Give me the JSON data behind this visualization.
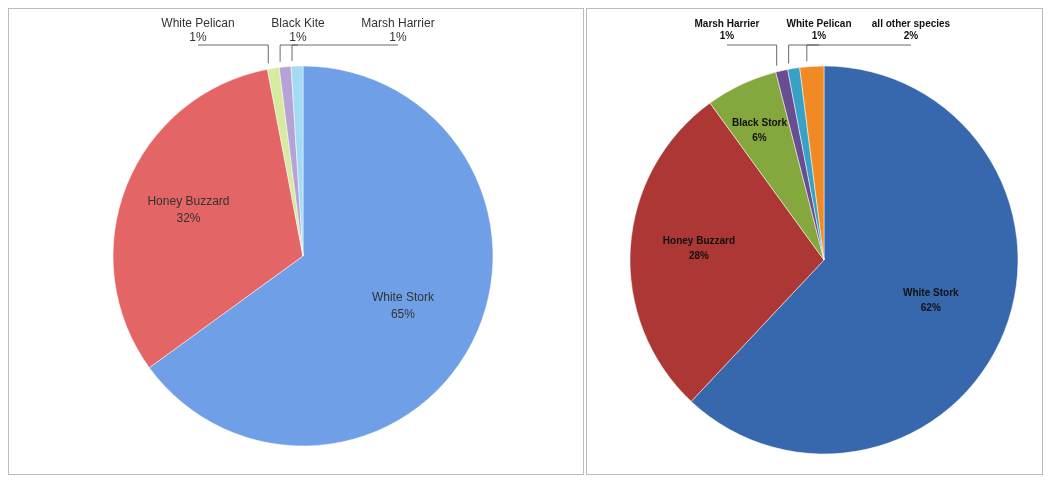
{
  "chart_data": [
    {
      "type": "pie",
      "categories": [
        "White Stork",
        "Honey Buzzard",
        "White Pelican",
        "Black Kite",
        "Marsh Harrier"
      ],
      "values": [
        65,
        32,
        1,
        1,
        1
      ],
      "value_labels": [
        "65%",
        "32%",
        "1%",
        "1%",
        "1%"
      ],
      "colors": [
        "#6f9fe6",
        "#e46565",
        "#d6eaa0",
        "#b7a2d6",
        "#a3dcf2"
      ]
    },
    {
      "type": "pie",
      "categories": [
        "White Stork",
        "Honey Buzzard",
        "Black Stork",
        "Marsh Harrier",
        "White Pelican",
        "all other species"
      ],
      "values": [
        62,
        28,
        6,
        1,
        1,
        2
      ],
      "value_labels": [
        "62%",
        "28%",
        "6%",
        "1%",
        "1%",
        "2%"
      ],
      "colors": [
        "#3767ad",
        "#ad3734",
        "#84a83d",
        "#6a4c91",
        "#39a1c4",
        "#f08a24"
      ]
    }
  ]
}
